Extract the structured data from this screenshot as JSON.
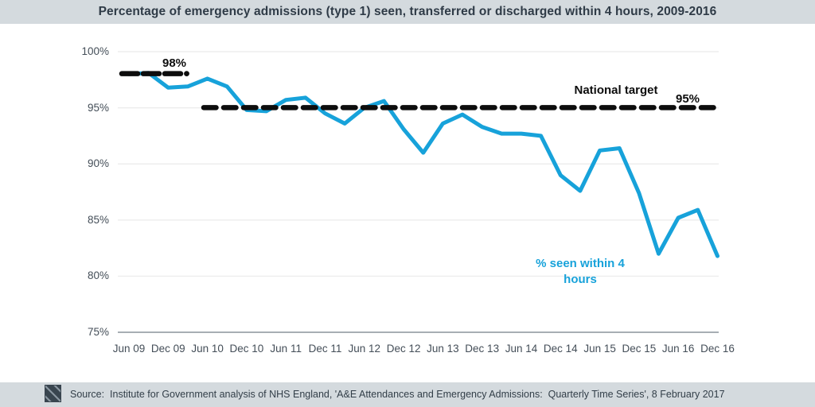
{
  "header": {
    "title": "Percentage of emergency admissions (type 1) seen, transferred or discharged within 4 hours, 2009-2016"
  },
  "source_bar": {
    "logo": "institute-for-government-logo",
    "text": "Source:  Institute for Government analysis of NHS England, 'A&E Attendances and Emergency Admissions:  Quarterly Time Series', 8 February 2017"
  },
  "chart_data": {
    "type": "line",
    "title": "Percentage of emergency admissions (type 1) seen, transferred or discharged within 4 hours, 2009-2016",
    "frequency": "quarterly",
    "x_tick_labels": [
      "Jun 09",
      "Dec 09",
      "Jun 10",
      "Dec 10",
      "Jun 11",
      "Dec 11",
      "Jun 12",
      "Dec 12",
      "Jun 13",
      "Dec 13",
      "Jun 14",
      "Dec 14",
      "Jun 15",
      "Dec 15",
      "Jun 16",
      "Dec 16"
    ],
    "points_per_tick_interval": 2,
    "y_tick_labels": [
      "100%",
      "95%",
      "90%",
      "85%",
      "80%",
      "75%"
    ],
    "y_tick_values": [
      100,
      95,
      90,
      85,
      80,
      75
    ],
    "ylim": [
      75,
      100
    ],
    "grid": "horizontal-light",
    "series": [
      {
        "name": "% seen within 4 hours",
        "color": "#17a2da",
        "values": [
          98.0,
          98.1,
          96.8,
          96.9,
          97.6,
          96.9,
          94.8,
          94.7,
          95.7,
          95.9,
          94.5,
          93.6,
          95.0,
          95.6,
          93.1,
          91.0,
          93.6,
          94.4,
          93.3,
          92.7,
          92.7,
          92.5,
          89.0,
          87.6,
          91.2,
          91.4,
          87.4,
          82.0,
          85.2,
          85.9,
          81.8
        ]
      }
    ],
    "target_lines": [
      {
        "label": "98%",
        "value": 98,
        "style": "dashed-black",
        "extent": "Jun 09 to Dec 09"
      },
      {
        "label": "95%",
        "name": "National target",
        "value": 95,
        "style": "dashed-black",
        "extent": "Mar 10 to Dec 16"
      }
    ],
    "annotations": {
      "target_98_label": "98%",
      "national_target_label": "National target",
      "target_95_label": "95%",
      "series_label_line1": "% seen within 4",
      "series_label_line2": "hours"
    },
    "colors": {
      "series_blue": "#17a2da",
      "target_black": "#0d0d0d",
      "gridline": "#ededed",
      "axis": "#8a949c",
      "band_background": "#d4dade"
    }
  }
}
